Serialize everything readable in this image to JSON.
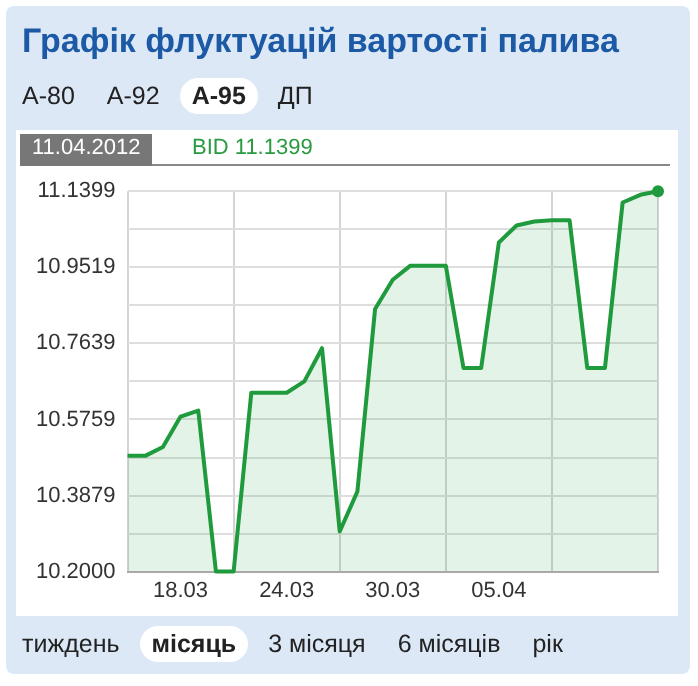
{
  "chart_data": {
    "type": "area",
    "title": "Графік флуктуацій вартості палива",
    "annotations": [
      "A-80",
      "A-92",
      "A-95",
      "ДП",
      "11.04.2012",
      "BID 11.1399",
      "тиждень",
      "місяць",
      "3 місяця",
      "6 місяців",
      "рік"
    ],
    "categories": [
      null,
      null,
      null,
      "18.03",
      null,
      null,
      null,
      null,
      null,
      "24.03",
      null,
      null,
      null,
      null,
      null,
      "30.03",
      null,
      null,
      null,
      null,
      null,
      "05.04",
      null,
      null,
      null,
      null,
      null,
      null,
      null,
      null,
      null
    ],
    "series": [
      {
        "color": "#1f9a3c",
        "values": [
          10.486,
          10.486,
          10.508,
          10.583,
          10.598,
          10.2,
          10.2,
          10.642,
          10.642,
          10.642,
          10.67,
          10.752,
          10.299,
          10.398,
          10.849,
          10.921,
          10.956,
          10.956,
          10.956,
          10.703,
          10.703,
          11.013,
          11.055,
          11.065,
          11.068,
          11.068,
          10.703,
          10.703,
          11.112,
          11.131,
          11.1399
        ]
      }
    ],
    "ylim": [
      10.2,
      11.1399
    ],
    "yticks": [
      {
        "value": 10.2,
        "label": "10.2000"
      },
      {
        "value": 10.294,
        "label": null
      },
      {
        "value": 10.3879,
        "label": "10.3879"
      },
      {
        "value": 10.4819,
        "label": null
      },
      {
        "value": 10.5759,
        "label": "10.5759"
      },
      {
        "value": 10.6699,
        "label": null
      },
      {
        "value": 10.7639,
        "label": "10.7639"
      },
      {
        "value": 10.8579,
        "label": null
      },
      {
        "value": 10.9519,
        "label": "10.9519"
      },
      {
        "value": 11.0459,
        "label": null
      },
      {
        "value": 11.1399,
        "label": "11.1399"
      }
    ],
    "grid": true
  }
}
